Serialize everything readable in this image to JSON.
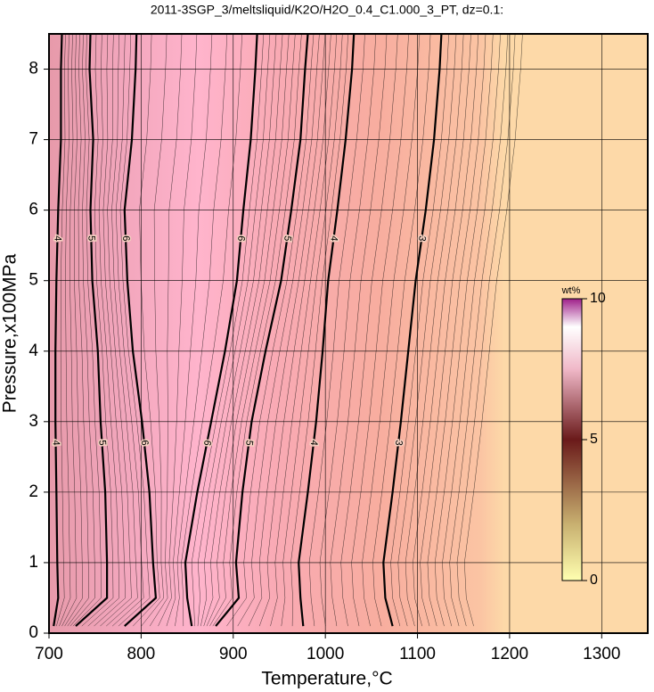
{
  "chart_data": {
    "type": "contour",
    "title": "2011-3SGP_3/meltsliquid/K2O/H2O_0.4_C1.000_3_PT, dz=0.1:",
    "x_label": "Temperature,°C",
    "y_label": "Pressure,x100MPa",
    "xlim": [
      700,
      1350
    ],
    "ylim": [
      0,
      8.5
    ],
    "xticks": [
      700,
      800,
      900,
      1000,
      1100,
      1200,
      1300
    ],
    "yticks": [
      0,
      1,
      2,
      3,
      4,
      5,
      6,
      7,
      8
    ],
    "grid": true,
    "contour_color": "#000000",
    "contours": [
      {
        "level": 4,
        "x": [
          705,
          710,
          709,
          708,
          707,
          707,
          708,
          710,
          713,
          713,
          714
        ],
        "y": [
          0.1,
          0.5,
          1,
          2,
          3,
          4,
          5,
          6,
          7,
          8,
          8.5
        ]
      },
      {
        "level": 5,
        "x": [
          729,
          763,
          763,
          761,
          756,
          753,
          747,
          745,
          748,
          744,
          745
        ],
        "y": [
          0.1,
          0.5,
          1,
          2,
          3,
          4,
          5,
          6,
          7,
          8,
          8.5
        ]
      },
      {
        "level": 6,
        "x": [
          782,
          816,
          813,
          809,
          801,
          791,
          785,
          782,
          790,
          794,
          795
        ],
        "y": [
          0.1,
          0.5,
          1,
          2,
          3,
          4,
          5,
          6,
          7,
          8,
          8.5
        ]
      },
      {
        "level": 6,
        "x": [
          855,
          850,
          848,
          861,
          876,
          891,
          904,
          911,
          919,
          924,
          926
        ],
        "y": [
          0.1,
          0.5,
          1,
          2,
          3,
          4,
          5,
          6,
          7,
          8,
          8.5
        ]
      },
      {
        "level": 5,
        "x": [
          881,
          906,
          903,
          910,
          920,
          935,
          952,
          963,
          973,
          978,
          981
        ],
        "y": [
          0.1,
          0.5,
          1,
          2,
          3,
          4,
          5,
          6,
          7,
          8,
          8.5
        ]
      },
      {
        "level": 4,
        "x": [
          976,
          973,
          971,
          981,
          990,
          997,
          1003,
          1013,
          1022,
          1029,
          1031
        ],
        "y": [
          0.1,
          0.5,
          1,
          2,
          3,
          4,
          5,
          6,
          7,
          8,
          8.5
        ]
      },
      {
        "level": 3,
        "x": [
          1073,
          1065,
          1063,
          1073,
          1082,
          1090,
          1098,
          1109,
          1118,
          1124,
          1126
        ],
        "y": [
          0.1,
          0.5,
          1,
          2,
          3,
          4,
          5,
          6,
          7,
          8,
          8.5
        ]
      }
    ],
    "colorbar_label": "wt%",
    "clim": [
      0,
      10
    ],
    "cticks": [
      0,
      5,
      10
    ]
  }
}
